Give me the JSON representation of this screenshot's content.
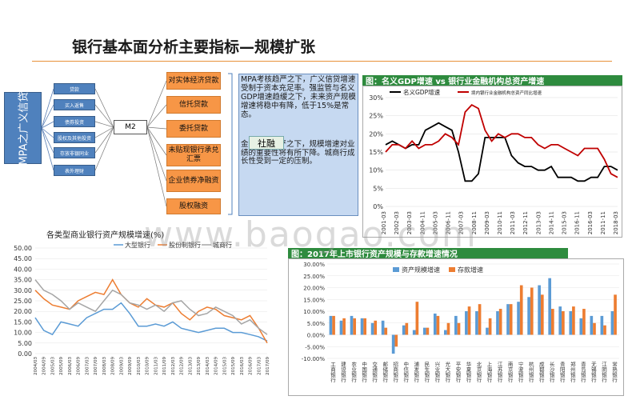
{
  "page": {
    "title": "银行基本面分析主要指标—规模扩张",
    "watermark": "www.baogao.com"
  },
  "diagram": {
    "main_label": "MPA之广义信贷",
    "left_items": [
      "贷款",
      "买入返售",
      "债券投资",
      "股权及其他投资",
      "存放非银同业",
      "表外理财"
    ],
    "m2_label": "M2",
    "right_items": [
      "对实体经济贷款",
      "信托贷款",
      "委托贷款",
      "未贴现银行承兑汇票",
      "企业债券净融资",
      "股权融资"
    ],
    "shrong_label": "社融",
    "note_text_1": "MPA考核趋严之下，广义信贷增速受制于资本充足率。强监管与名义GDP增速趋缓之下，未来资产规模增速将稳中有降，低于15%是常态。",
    "note_text_2": "金融监管趋严之下，规模增速对业绩的重要性将有所下降。城商行成长性受到一定的压制。"
  },
  "colors": {
    "blue": "#4f81bd",
    "orange": "#f79646",
    "green_header": "#2e8b3e",
    "red_series": "#c00000",
    "black_series": "#000000"
  },
  "chart_data": [
    {
      "type": "line",
      "title": "图：名义GDP增速 vs 银行业金融机构总资产增速",
      "series": [
        {
          "name": "名义GDP增速",
          "values": [
            17,
            18,
            17,
            16,
            17,
            17,
            21,
            22,
            23,
            22,
            21,
            15,
            7,
            7,
            9,
            19,
            19,
            19,
            19,
            14,
            12,
            11,
            11,
            10,
            10,
            11,
            8,
            8,
            8,
            7,
            7,
            8,
            8,
            11,
            11,
            10
          ]
        },
        {
          "name": "境内银行业金融机构总资产同比增速",
          "values": [
            15,
            17,
            17,
            16,
            18,
            16,
            17,
            17,
            18,
            20,
            19,
            17,
            26,
            28,
            27,
            21,
            18,
            20,
            19,
            20,
            20,
            19,
            19,
            17,
            16,
            17,
            17,
            16,
            15,
            14,
            16,
            16,
            16,
            13,
            9,
            8
          ]
        }
      ],
      "x_ticks": [
        "2001-03",
        "2002-03",
        "2003-03",
        "2004-11",
        "2005-03",
        "2006-11",
        "2007-03",
        "2008-11",
        "2009-03",
        "2010-11",
        "2011-03",
        "2012-11",
        "2013-03",
        "2014-11",
        "2015-03",
        "2016-11",
        "2016-03",
        "2011-11",
        "2018-03"
      ],
      "y_ticks": [
        "0%",
        "5%",
        "10%",
        "15%",
        "20%",
        "25%",
        "30%"
      ],
      "ylim": [
        0,
        30
      ]
    },
    {
      "type": "line",
      "title": "各类型商业银行资产规模增速(%)",
      "series_labels": [
        "大型银行",
        "股份制银行",
        "城商行"
      ],
      "series": [
        {
          "name": "series-blue",
          "values": [
            17,
            11,
            9,
            15,
            14,
            13,
            17,
            19,
            21,
            21,
            24,
            19,
            13,
            13,
            14,
            13,
            15,
            12,
            11,
            10,
            11,
            12,
            12,
            10,
            10,
            9,
            8,
            6
          ]
        },
        {
          "name": "series-orange",
          "values": [
            30,
            26,
            23,
            22,
            21,
            25,
            27,
            29,
            28,
            35,
            28,
            24,
            22,
            26,
            23,
            22,
            24,
            19,
            16,
            20,
            22,
            21,
            18,
            17,
            16,
            18,
            12,
            5
          ]
        },
        {
          "name": "series-gray",
          "values": [
            35,
            30,
            28,
            25,
            21,
            24,
            22,
            20,
            25,
            30,
            28,
            24,
            23,
            21,
            23,
            20,
            24,
            25,
            21,
            18,
            19,
            22,
            20,
            18,
            14,
            16,
            12,
            9
          ]
        }
      ],
      "x_ticks": [
        "2004/03",
        "2004/09",
        "2005/03",
        "2005/09",
        "2006/03",
        "2006/09",
        "2007/03",
        "2007/09",
        "2008/03",
        "2008/09",
        "2009/03",
        "2009/09",
        "2010/03",
        "2010/09",
        "2011/03",
        "2011/09",
        "2012/03",
        "2012/09",
        "2013/03",
        "2013/09",
        "2014/03",
        "2014/09",
        "2015/03",
        "2015/09",
        "2016/03",
        "2016/09",
        "2017/03",
        "2017/09"
      ],
      "y_ticks": [
        "0.00",
        "5.00",
        "10.00",
        "15.00",
        "20.00",
        "25.00",
        "30.00",
        "35.00",
        "40.00",
        "45.00",
        "50.00"
      ],
      "ylim": [
        0,
        50
      ]
    },
    {
      "type": "bar",
      "title": "图：2017年上市银行资产规模与存款增速情况",
      "categories": [
        "工商银行",
        "建设银行",
        "农业银行",
        "中国银行",
        "交通银行",
        "邮储银行",
        "招商银行",
        "中信银行",
        "浦发银行",
        "民生银行",
        "兴业银行",
        "光大银行",
        "平安银行",
        "华夏银行",
        "北京银行",
        "上海银行",
        "江苏银行",
        "南京银行",
        "宁波银行",
        "杭州银行",
        "成都银行",
        "长沙银行",
        "贵阳银行",
        "郑州银行",
        "青岛银行",
        "无锡银行",
        "江阴银行",
        "常熟银行"
      ],
      "series": [
        {
          "name": "资产规模增速",
          "values": [
            8,
            6,
            8,
            7,
            5,
            6,
            -8,
            4,
            2,
            3,
            9,
            2,
            8,
            10,
            10,
            3,
            10,
            13,
            14,
            16,
            21,
            24,
            12,
            10,
            7,
            8,
            8,
            10
          ]
        },
        {
          "name": "存款增速",
          "values": [
            8,
            7,
            7,
            7,
            6,
            3,
            -5,
            5,
            14,
            3,
            8,
            5,
            5,
            12,
            13,
            7,
            11,
            13,
            21,
            20,
            17,
            11,
            10,
            12,
            11,
            5,
            4,
            17
          ]
        }
      ],
      "y_ticks": [
        "-10.00%",
        "-5.00%",
        "0.00%",
        "5.00%",
        "10.00%",
        "15.00%",
        "20.00%",
        "25.00%",
        "30.00%"
      ],
      "ylim": [
        -10,
        30
      ]
    }
  ]
}
